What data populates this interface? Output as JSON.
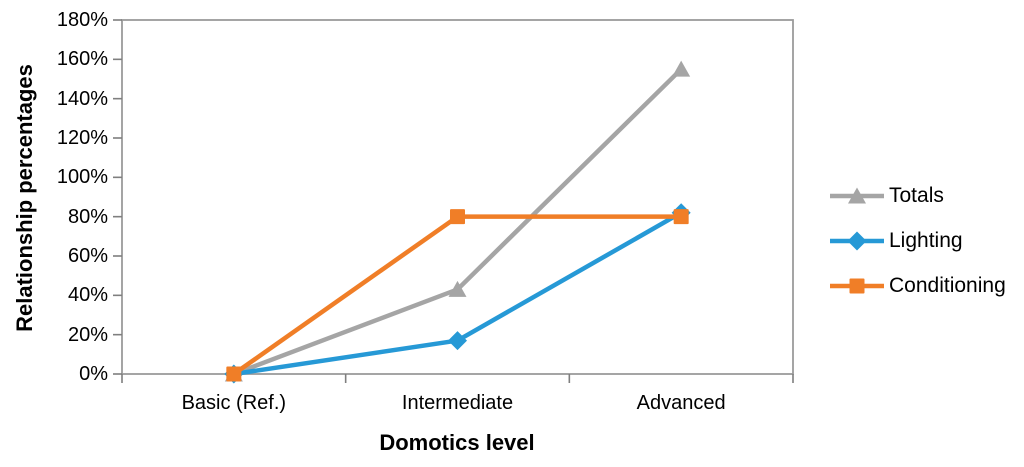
{
  "chart_data": {
    "type": "line",
    "title": "",
    "xlabel": "Domotics level",
    "ylabel": "Relationship percentages",
    "categories": [
      "Basic (Ref.)",
      "Intermediate",
      "Advanced"
    ],
    "series": [
      {
        "name": "Totals",
        "values": [
          0,
          43,
          155
        ],
        "color": "#A5A5A5",
        "marker": "triangle"
      },
      {
        "name": "Lighting",
        "values": [
          0,
          17,
          82
        ],
        "color": "#2699D6",
        "marker": "diamond"
      },
      {
        "name": "Conditioning",
        "values": [
          0,
          80,
          80
        ],
        "color": "#F07E27",
        "marker": "square"
      }
    ],
    "ylim": [
      0,
      180
    ],
    "ytick_step": 20,
    "ytick_labels": [
      "0%",
      "20%",
      "40%",
      "60%",
      "80%",
      "100%",
      "120%",
      "140%",
      "160%",
      "180%"
    ],
    "grid": false,
    "legend_position": "right",
    "axis_color": "#9B9B9B",
    "tick_color": "#7F7F7F",
    "text_color": "#000000"
  }
}
